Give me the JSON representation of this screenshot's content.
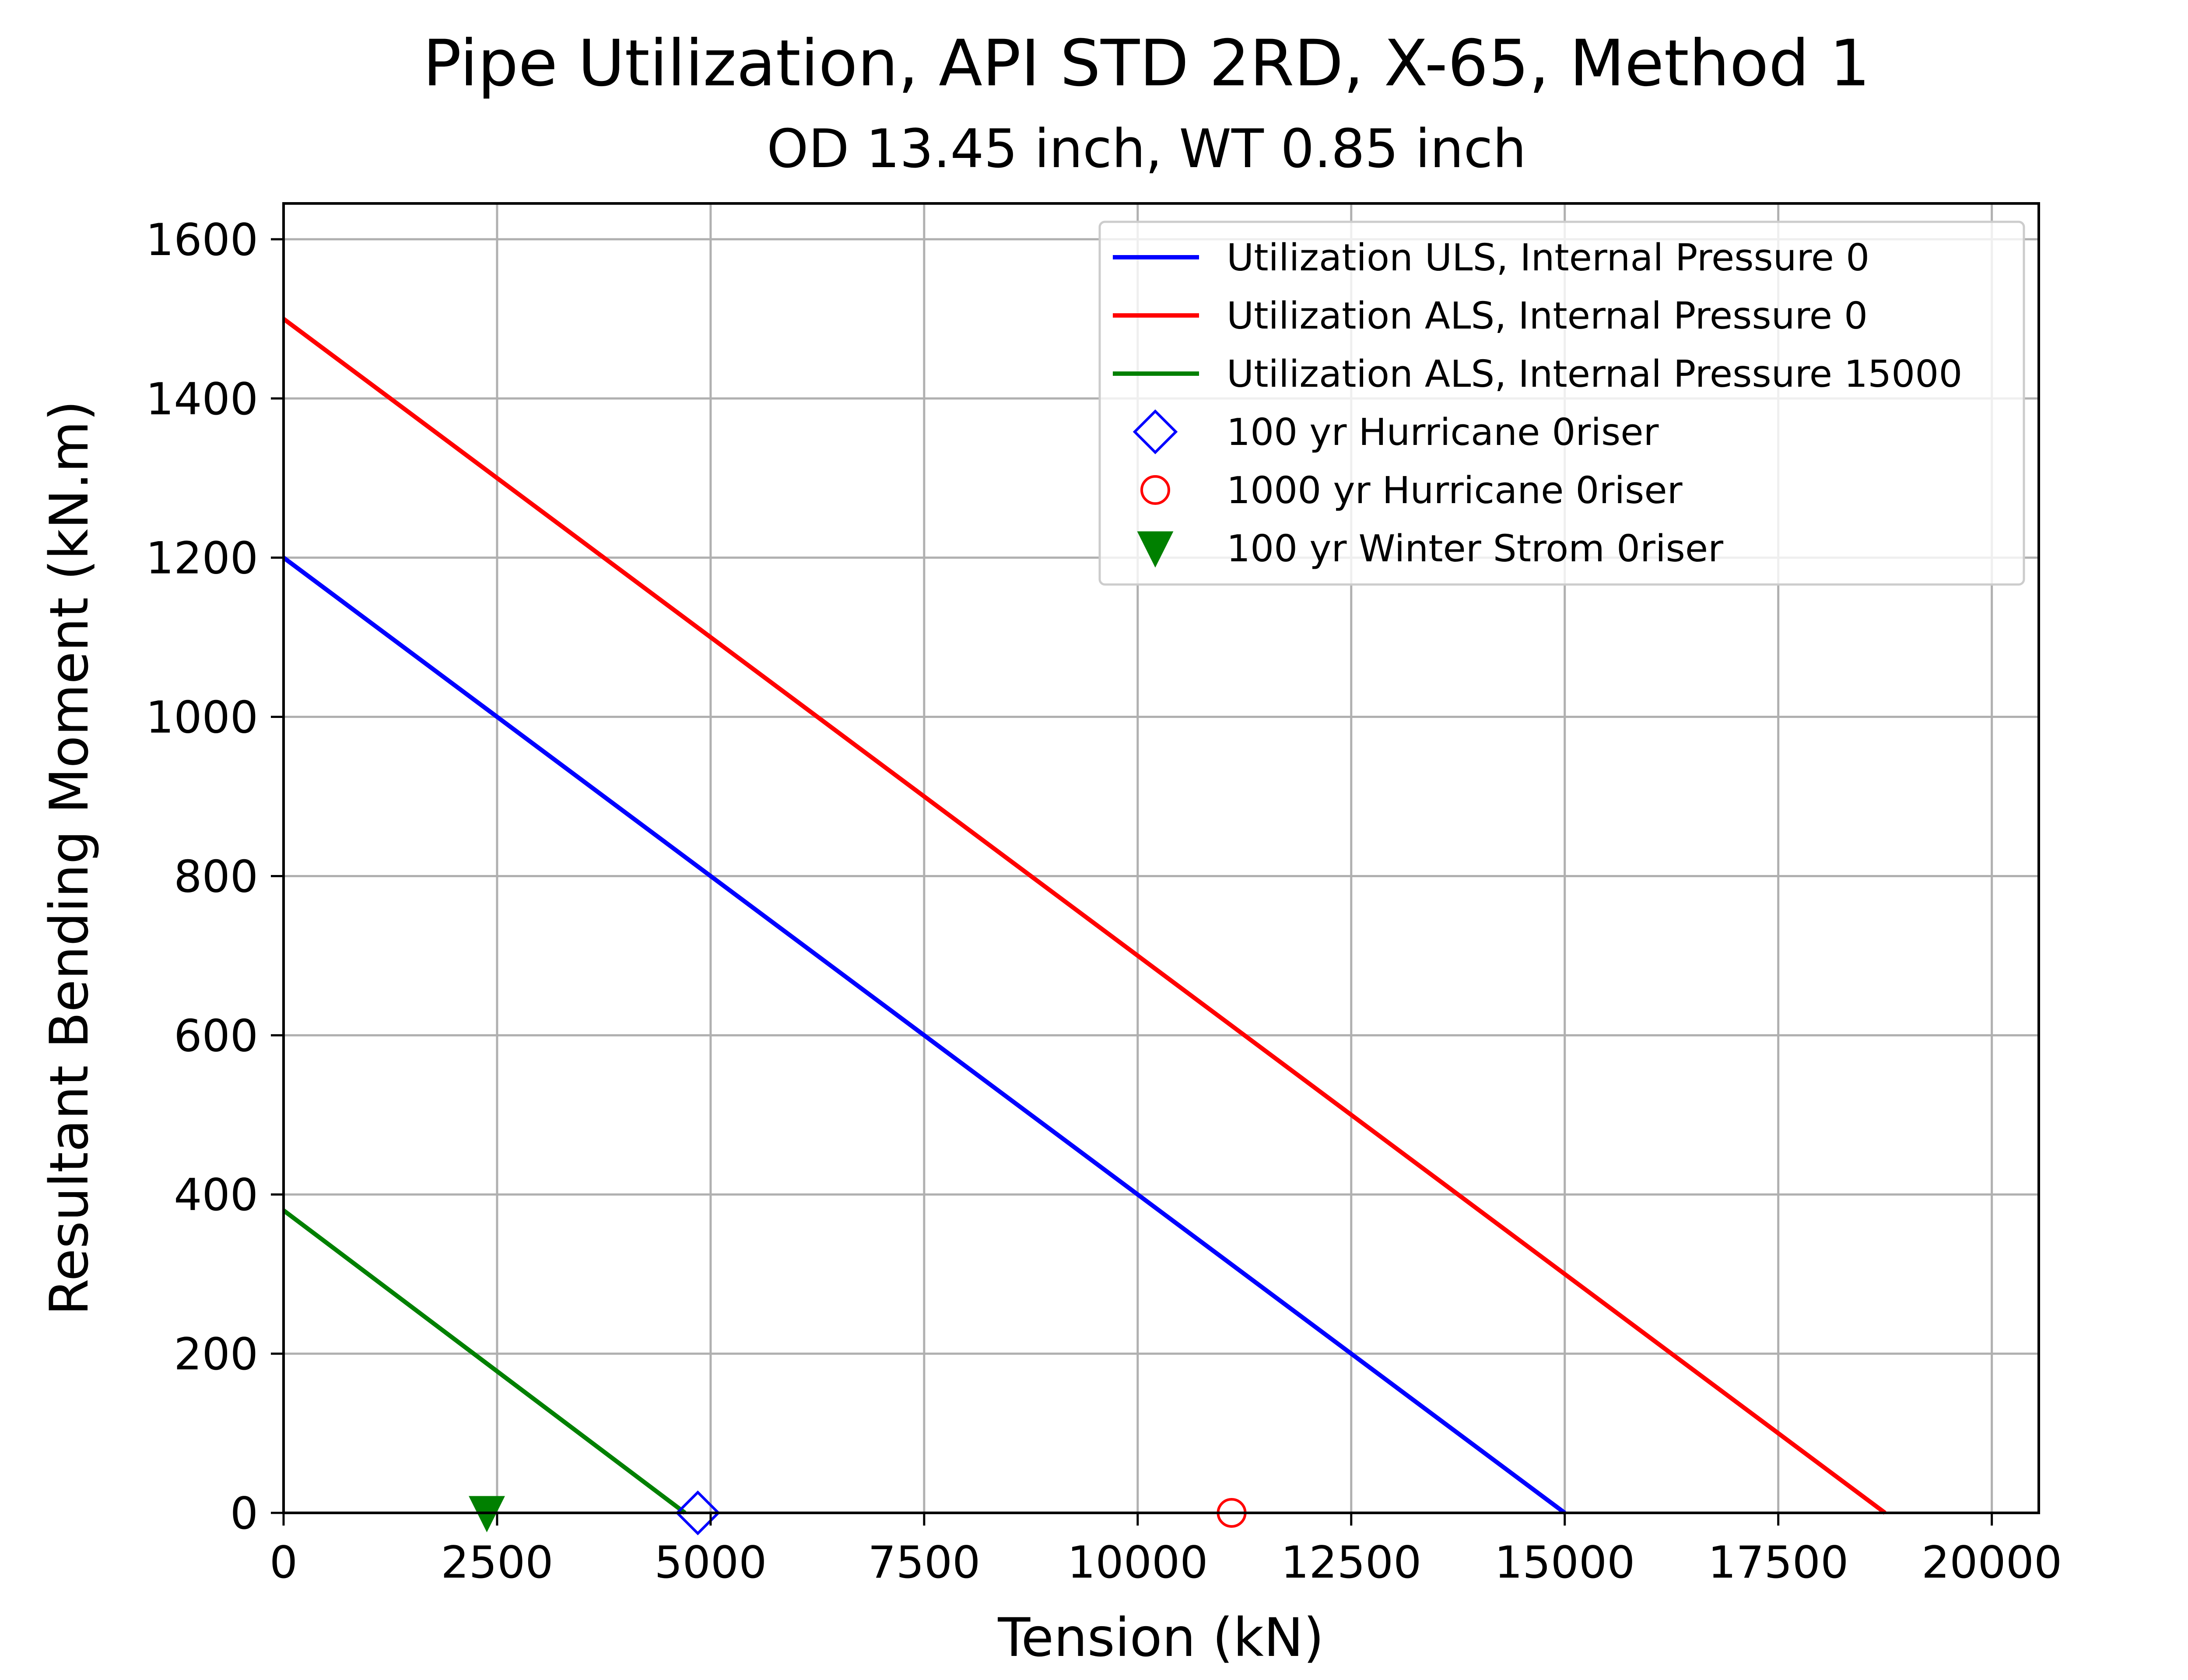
{
  "chart_data": {
    "type": "line",
    "title": "Pipe Utilization, API STD 2RD, X-65, Method 1",
    "subtitle": "OD 13.45 inch, WT 0.85 inch",
    "xlabel": "Tension (kN)",
    "ylabel": "Resultant Bending Moment (kN.m)",
    "xlim": [
      0,
      20550
    ],
    "ylim": [
      0,
      1645
    ],
    "xticks": [
      0,
      2500,
      5000,
      7500,
      10000,
      12500,
      15000,
      17500,
      20000
    ],
    "yticks": [
      0,
      200,
      400,
      600,
      800,
      1000,
      1200,
      1400,
      1600
    ],
    "xtick_labels": [
      "0",
      "2500",
      "5000",
      "7500",
      "10000",
      "12500",
      "15000",
      "17500",
      "20000"
    ],
    "ytick_labels": [
      "0",
      "200",
      "400",
      "600",
      "800",
      "1000",
      "1200",
      "1400",
      "1600"
    ],
    "grid": true,
    "legend_position": "top-right",
    "series": [
      {
        "name": "Utilization ULS, Internal Pressure 0",
        "kind": "line",
        "color": "#0000ff",
        "x": [
          0,
          15000
        ],
        "y": [
          1200,
          0
        ]
      },
      {
        "name": "Utilization ALS, Internal Pressure 0",
        "kind": "line",
        "color": "#ff0000",
        "x": [
          0,
          18750
        ],
        "y": [
          1500,
          0
        ]
      },
      {
        "name": "Utilization ALS, Internal Pressure 15000",
        "kind": "line",
        "color": "#008000",
        "x": [
          0,
          4700
        ],
        "y": [
          380,
          0
        ]
      },
      {
        "name": "100 yr Hurricane 0riser",
        "kind": "marker",
        "marker": "diamond-open",
        "color": "#0000ff",
        "x": [
          4850
        ],
        "y": [
          0
        ]
      },
      {
        "name": "1000 yr Hurricane 0riser",
        "kind": "marker",
        "marker": "circle-open",
        "color": "#ff0000",
        "x": [
          11100
        ],
        "y": [
          0
        ]
      },
      {
        "name": "100 yr Winter Strom 0riser",
        "kind": "marker",
        "marker": "triangle-down-filled",
        "color": "#008000",
        "x": [
          2380
        ],
        "y": [
          0
        ]
      }
    ]
  }
}
